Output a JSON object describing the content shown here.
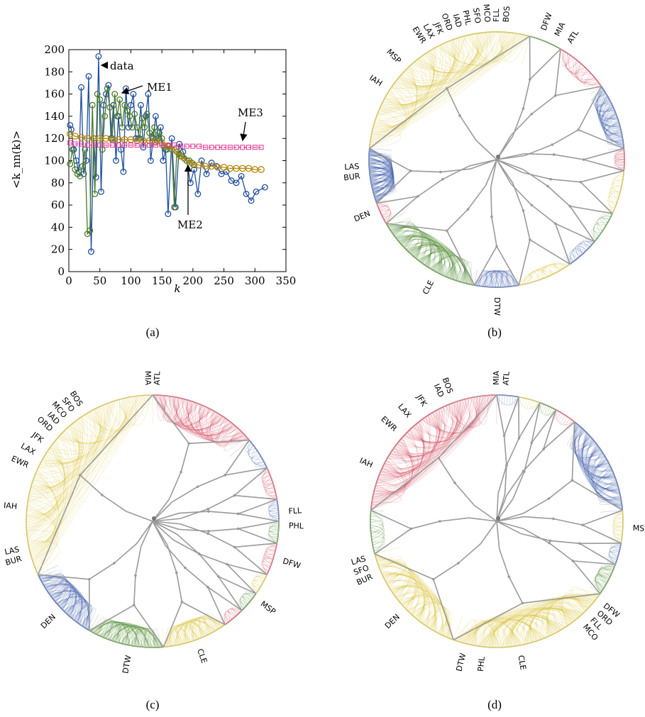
{
  "panels": {
    "a": {
      "label": "(a)"
    },
    "b": {
      "label": "(b)"
    },
    "c": {
      "label": "(c)"
    },
    "d": {
      "label": "(d)"
    }
  },
  "colors": {
    "data": "#1f4fa0",
    "ME1": "#4a7a2a",
    "ME2": "#b8860b",
    "ME3": "#e0338f",
    "yellow": "#d9c23a",
    "blue": "#3d5ba8",
    "red": "#d0465a",
    "green": "#4e8a2e",
    "tree": "#9a9a9a"
  },
  "chart_data": {
    "type": "line",
    "title": "",
    "xlabel": "k",
    "ylabel": "<k_nn(k)>",
    "xlim": [
      0,
      350
    ],
    "ylim": [
      0,
      200
    ],
    "xticks": [
      "0",
      "50",
      "100",
      "150",
      "200",
      "250",
      "300",
      "350"
    ],
    "yticks": [
      "0",
      "20",
      "40",
      "60",
      "80",
      "100",
      "120",
      "140",
      "160",
      "180",
      "200"
    ],
    "annotations": [
      "data",
      "ME1",
      "ME2",
      "ME3"
    ],
    "series": [
      {
        "name": "data",
        "x": [
          2,
          4,
          8,
          12,
          16,
          20,
          24,
          28,
          32,
          36,
          40,
          44,
          48,
          52,
          56,
          60,
          64,
          68,
          72,
          76,
          80,
          84,
          88,
          92,
          96,
          100,
          104,
          108,
          112,
          116,
          120,
          124,
          128,
          132,
          136,
          140,
          144,
          148,
          152,
          156,
          160,
          166,
          172,
          178,
          184,
          190,
          196,
          202,
          208,
          214,
          222,
          230,
          238,
          246,
          254,
          262,
          270,
          278,
          286,
          294,
          302,
          316
        ],
        "y": [
          132,
          128,
          110,
          100,
          90,
          166,
          88,
          100,
          176,
          18,
          120,
          85,
          194,
          72,
          150,
          160,
          168,
          120,
          150,
          100,
          140,
          110,
          90,
          165,
          130,
          150,
          160,
          120,
          120,
          150,
          112,
          140,
          160,
          100,
          120,
          140,
          120,
          130,
          100,
          110,
          52,
          120,
          58,
          115,
          108,
          100,
          80,
          92,
          70,
          100,
          88,
          98,
          95,
          88,
          90,
          82,
          80,
          86,
          70,
          64,
          72,
          76
        ]
      },
      {
        "name": "ME1",
        "x": [
          2,
          6,
          10,
          14,
          18,
          22,
          26,
          30,
          34,
          38,
          42,
          46,
          50,
          54,
          58,
          62,
          66,
          70,
          74,
          78,
          82,
          86,
          90,
          94,
          98,
          102,
          106,
          110,
          114,
          118,
          122,
          126,
          130,
          134,
          138,
          142,
          146,
          150,
          154,
          158,
          162,
          166,
          170,
          174,
          178,
          182,
          186,
          190,
          194,
          198,
          202
        ],
        "y": [
          97,
          110,
          92,
          88,
          86,
          95,
          110,
          34,
          37,
          150,
          70,
          160,
          155,
          110,
          140,
          165,
          148,
          120,
          160,
          140,
          155,
          130,
          150,
          145,
          140,
          130,
          142,
          130,
          120,
          138,
          130,
          142,
          125,
          122,
          130,
          118,
          125,
          120,
          112,
          110,
          113,
          110,
          58,
          108,
          106,
          104,
          102,
          100,
          100,
          98,
          96
        ]
      },
      {
        "name": "ME2",
        "x": [
          2,
          10,
          20,
          30,
          40,
          50,
          60,
          70,
          80,
          90,
          100,
          110,
          120,
          130,
          140,
          150,
          160,
          170,
          180,
          190,
          200,
          210,
          220,
          230,
          240,
          250,
          260,
          270,
          280,
          290,
          300,
          310
        ],
        "y": [
          124,
          122,
          121,
          120,
          120,
          120,
          120,
          119,
          119,
          119,
          119,
          118,
          118,
          118,
          117,
          116,
          113,
          110,
          104,
          100,
          97,
          96,
          95,
          95,
          94,
          94,
          93,
          93,
          93,
          93,
          92,
          92
        ]
      },
      {
        "name": "ME3",
        "x": [
          2,
          10,
          20,
          30,
          40,
          50,
          60,
          70,
          80,
          90,
          100,
          110,
          120,
          130,
          140,
          150,
          160,
          170,
          180,
          190,
          200,
          210,
          220,
          230,
          240,
          250,
          260,
          270,
          280,
          290,
          300,
          310
        ],
        "y": [
          116,
          115,
          115,
          114,
          114,
          114,
          114,
          114,
          114,
          114,
          114,
          114,
          114,
          114,
          114,
          114,
          114,
          114,
          113,
          113,
          113,
          113,
          112,
          112,
          112,
          112,
          112,
          112,
          112,
          112,
          112,
          112
        ]
      }
    ]
  },
  "circles": {
    "b": [
      {
        "text": "MSP"
      },
      {
        "text": "EWR"
      },
      {
        "text": "LAX"
      },
      {
        "text": "JFK"
      },
      {
        "text": "ORD"
      },
      {
        "text": "IAD"
      },
      {
        "text": "PHL"
      },
      {
        "text": "SFO"
      },
      {
        "text": "MCO"
      },
      {
        "text": "FLL"
      },
      {
        "text": "BOS"
      },
      {
        "text": "DFW"
      },
      {
        "text": "MIA"
      },
      {
        "text": "ATL"
      },
      {
        "text": "IAH"
      },
      {
        "text": "LAS"
      },
      {
        "text": "BUR"
      },
      {
        "text": "DEN"
      },
      {
        "text": "CLE"
      },
      {
        "text": "DTW"
      }
    ],
    "c": [
      {
        "text": "ATL"
      },
      {
        "text": "MIA"
      },
      {
        "text": "BOS"
      },
      {
        "text": "SFO"
      },
      {
        "text": "MCO"
      },
      {
        "text": "IAD"
      },
      {
        "text": "ORD"
      },
      {
        "text": "JFK"
      },
      {
        "text": "LAX"
      },
      {
        "text": "EWR"
      },
      {
        "text": "IAH"
      },
      {
        "text": "FLL"
      },
      {
        "text": "PHL"
      },
      {
        "text": "DFW"
      },
      {
        "text": "MSP"
      },
      {
        "text": "LAS"
      },
      {
        "text": "BUR"
      },
      {
        "text": "DEN"
      },
      {
        "text": "DTW"
      },
      {
        "text": "CLE"
      }
    ],
    "d": [
      {
        "text": "MIA"
      },
      {
        "text": "ATL"
      },
      {
        "text": "BOS"
      },
      {
        "text": "IAD"
      },
      {
        "text": "JFK"
      },
      {
        "text": "LAX"
      },
      {
        "text": "EWR"
      },
      {
        "text": "IAH"
      },
      {
        "text": "MSP"
      },
      {
        "text": "LAS"
      },
      {
        "text": "SFO"
      },
      {
        "text": "BUR"
      },
      {
        "text": "DEN"
      },
      {
        "text": "DFW"
      },
      {
        "text": "ORD"
      },
      {
        "text": "FLL"
      },
      {
        "text": "MCO"
      },
      {
        "text": "DTW"
      },
      {
        "text": "PHL"
      },
      {
        "text": "CLE"
      }
    ]
  }
}
